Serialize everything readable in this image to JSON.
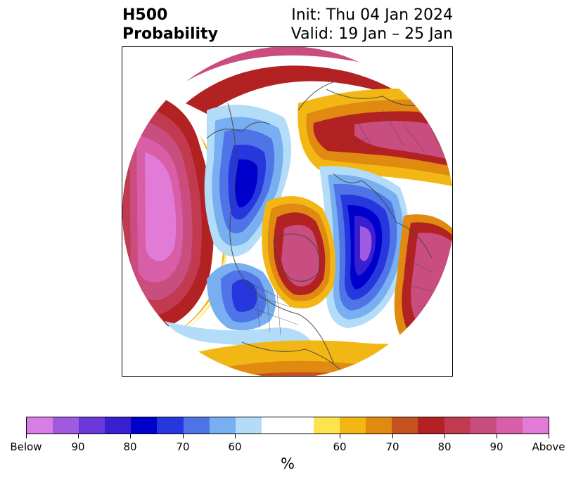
{
  "header": {
    "variable": "H500",
    "product": "Probability",
    "init": "Init: Thu 04 Jan 2024",
    "valid": "Valid: 19 Jan – 25 Jan"
  },
  "colorbar": {
    "colors": [
      "#d77ee6",
      "#9f5ae0",
      "#6a38d8",
      "#3a1fd1",
      "#0000cc",
      "#2638dd",
      "#4f74e8",
      "#78aff0",
      "#b2dcf8",
      "#ffffff",
      "#ffffff",
      "#fde34d",
      "#f2b714",
      "#e08a12",
      "#c5521e",
      "#b22222",
      "#c23a50",
      "#c94d7f",
      "#d85ea8",
      "#e27ad7"
    ],
    "tick_labels": [
      "Below",
      "90",
      "80",
      "70",
      "60",
      "60",
      "70",
      "80",
      "90",
      "Above"
    ],
    "unit": "%"
  },
  "map": {
    "type": "polar-stereographic probability map",
    "below_color": "#0000cc",
    "above_color": "#b22222"
  }
}
